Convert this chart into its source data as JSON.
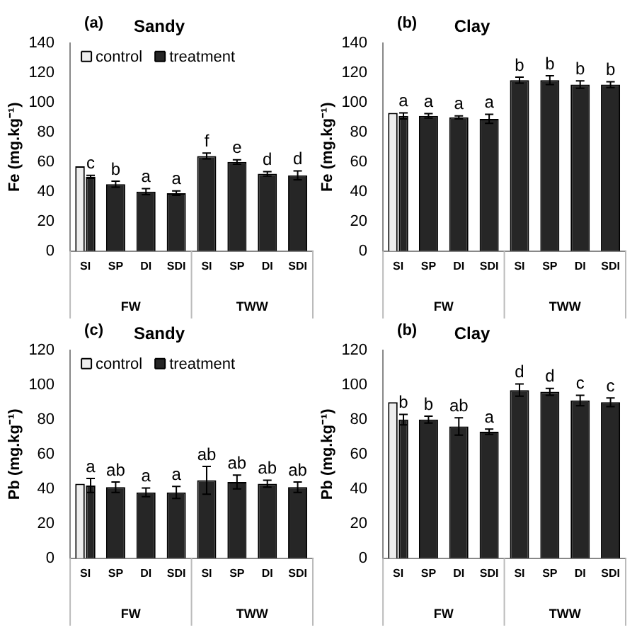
{
  "chart_data": [
    {
      "type": "bar",
      "subtitle": "(a)",
      "title": "Sandy",
      "ylabel": "Fe (mg.kg⁻¹)",
      "categories": [
        "SI",
        "SP",
        "DI",
        "SDI",
        "SI",
        "SP",
        "DI",
        "SDI"
      ],
      "annotations": [
        "FW",
        "TWW"
      ],
      "legend": "top left",
      "grid": false,
      "ylim": [
        0,
        140
      ],
      "yticks": [
        0,
        20,
        40,
        60,
        80,
        100,
        120,
        140
      ],
      "series": [
        {
          "name": "control",
          "color": "#eeeeee",
          "values": [
            57,
            null,
            null,
            null,
            null,
            null,
            null,
            null
          ]
        },
        {
          "name": "treatment",
          "color": "#262626",
          "values": [
            50,
            45,
            40,
            39,
            64,
            60,
            52,
            51
          ],
          "errors": [
            1,
            2,
            2,
            1.5,
            2,
            1.5,
            1.5,
            3
          ],
          "value_labels": [
            "c",
            "b",
            "a",
            "a",
            "f",
            "e",
            "d",
            "d"
          ]
        }
      ]
    },
    {
      "type": "bar",
      "subtitle": "(b)",
      "title": "Clay",
      "ylabel": "Fe (mg.kg⁻¹)",
      "categories": [
        "SI",
        "SP",
        "DI",
        "SDI",
        "SI",
        "SP",
        "DI",
        "SDI"
      ],
      "annotations": [
        "FW",
        "TWW"
      ],
      "grid": false,
      "ylim": [
        0,
        140
      ],
      "yticks": [
        0,
        20,
        40,
        60,
        80,
        100,
        120,
        140
      ],
      "series": [
        {
          "color": "#eeeeee",
          "values": [
            93,
            null,
            null,
            null,
            null,
            null,
            null,
            null
          ]
        },
        {
          "color": "#262626",
          "values": [
            91,
            91,
            90,
            89,
            115,
            115,
            112,
            112
          ],
          "errors": [
            2,
            1.5,
            1,
            3,
            2,
            3,
            2.5,
            2
          ],
          "value_labels": [
            "a",
            "a",
            "a",
            "a",
            "b",
            "b",
            "b",
            "b"
          ]
        }
      ]
    },
    {
      "type": "bar",
      "subtitle": "(c)",
      "title": "Sandy",
      "ylabel": "Pb (mg.kg⁻¹)",
      "categories": [
        "SI",
        "SP",
        "DI",
        "SDI",
        "SI",
        "SP",
        "DI",
        "SDI"
      ],
      "annotations": [
        "FW",
        "TWW"
      ],
      "legend": "top left",
      "grid": false,
      "ylim": [
        0,
        120
      ],
      "yticks": [
        0,
        20,
        40,
        60,
        80,
        100,
        120
      ],
      "series": [
        {
          "name": "control",
          "color": "#eeeeee",
          "values": [
            43,
            null,
            null,
            null,
            null,
            null,
            null,
            null
          ]
        },
        {
          "name": "treatment",
          "color": "#262626",
          "values": [
            42,
            41,
            38,
            38,
            45,
            44,
            43,
            41
          ],
          "errors": [
            4,
            3,
            2.5,
            3.5,
            8,
            4,
            2,
            3
          ],
          "value_labels": [
            "a",
            "ab",
            "a",
            "a",
            "ab",
            "ab",
            "ab",
            "ab"
          ]
        }
      ]
    },
    {
      "type": "bar",
      "subtitle": "(b)",
      "title": "Clay",
      "ylabel": "Pb (mg.kg⁻¹)",
      "categories": [
        "SI",
        "SP",
        "DI",
        "SDI",
        "SI",
        "SP",
        "DI",
        "SDI"
      ],
      "annotations": [
        "FW",
        "TWW"
      ],
      "grid": false,
      "ylim": [
        0,
        120
      ],
      "yticks": [
        0,
        20,
        40,
        60,
        80,
        100,
        120
      ],
      "series": [
        {
          "color": "#eeeeee",
          "values": [
            90,
            null,
            null,
            null,
            null,
            null,
            null,
            null
          ]
        },
        {
          "color": "#262626",
          "values": [
            80,
            80,
            76,
            73,
            97,
            96,
            91,
            90
          ],
          "errors": [
            3,
            2,
            5,
            1.5,
            3.5,
            2,
            3,
            2.5
          ],
          "value_labels": [
            "b",
            "b",
            "ab",
            "a",
            "d",
            "d",
            "c",
            "c"
          ]
        }
      ]
    }
  ]
}
